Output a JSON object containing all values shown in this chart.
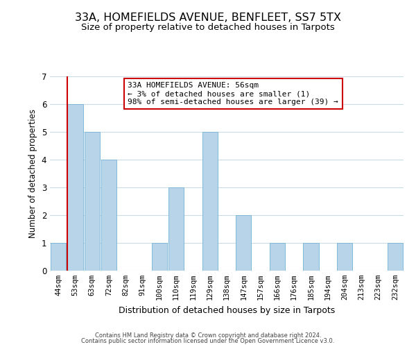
{
  "title": "33A, HOMEFIELDS AVENUE, BENFLEET, SS7 5TX",
  "subtitle": "Size of property relative to detached houses in Tarpots",
  "xlabel": "Distribution of detached houses by size in Tarpots",
  "ylabel": "Number of detached properties",
  "categories": [
    "44sqm",
    "53sqm",
    "63sqm",
    "72sqm",
    "82sqm",
    "91sqm",
    "100sqm",
    "110sqm",
    "119sqm",
    "129sqm",
    "138sqm",
    "147sqm",
    "157sqm",
    "166sqm",
    "176sqm",
    "185sqm",
    "194sqm",
    "204sqm",
    "213sqm",
    "223sqm",
    "232sqm"
  ],
  "values": [
    1,
    6,
    5,
    4,
    0,
    0,
    1,
    3,
    0,
    5,
    0,
    2,
    0,
    1,
    0,
    1,
    0,
    1,
    0,
    0,
    1
  ],
  "bar_color": "#b8d4e8",
  "bar_edge_color": "#7fb8d8",
  "red_line_index": 1,
  "annotation_text": "33A HOMEFIELDS AVENUE: 56sqm\n← 3% of detached houses are smaller (1)\n98% of semi-detached houses are larger (39) →",
  "annotation_box_color": "#ffffff",
  "annotation_box_edge": "#cc0000",
  "ylim": [
    0,
    7
  ],
  "yticks": [
    0,
    1,
    2,
    3,
    4,
    5,
    6,
    7
  ],
  "footer_line1": "Contains HM Land Registry data © Crown copyright and database right 2024.",
  "footer_line2": "Contains public sector information licensed under the Open Government Licence v3.0.",
  "background_color": "#ffffff",
  "grid_color": "#c8dcea",
  "title_fontsize": 11.5,
  "subtitle_fontsize": 9.5,
  "tick_fontsize": 7.5,
  "ylabel_fontsize": 8.5,
  "xlabel_fontsize": 9,
  "annotation_fontsize": 8,
  "footer_fontsize": 6
}
